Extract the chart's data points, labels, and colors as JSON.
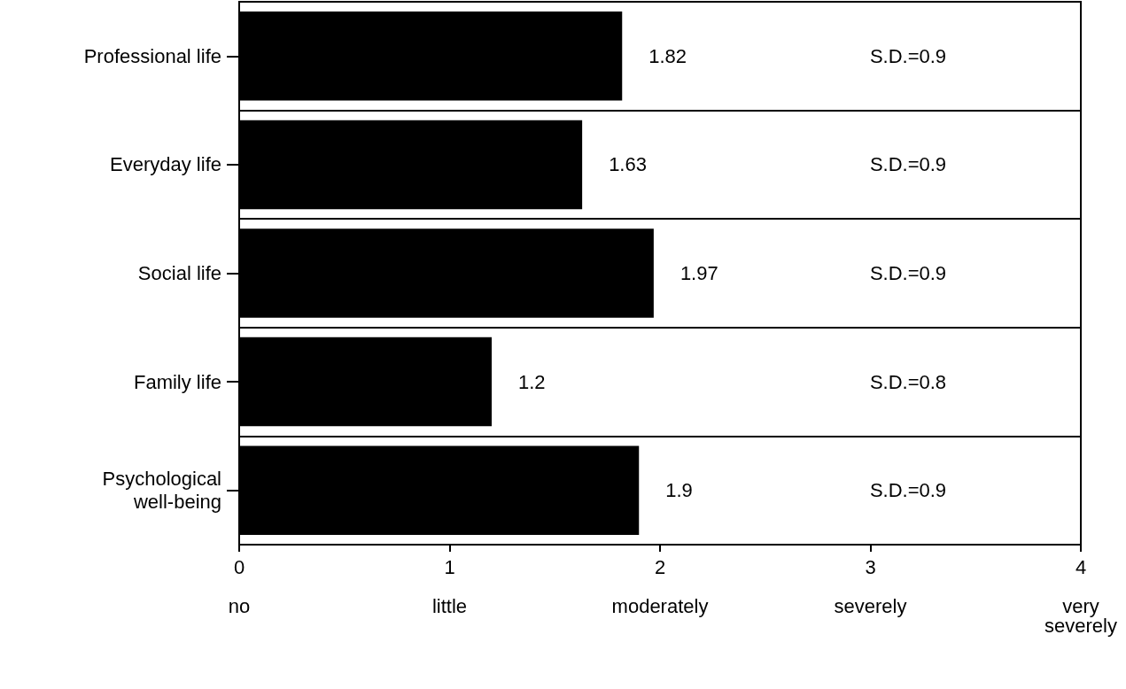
{
  "chart_data": {
    "type": "bar",
    "orientation": "horizontal",
    "categories": [
      "Professional life",
      "Everyday life",
      "Social life",
      "Family life",
      "Psychological\nwell-being"
    ],
    "values": [
      1.82,
      1.63,
      1.97,
      1.2,
      1.9
    ],
    "color": "#000000",
    "data_labels": true,
    "xlim": [
      0,
      4
    ],
    "xticks": [
      {
        "value": 0,
        "label": "0\n\nno"
      },
      {
        "value": 1,
        "label": "1\n\nlittle"
      },
      {
        "value": 2,
        "label": "2\n\nmoderately"
      },
      {
        "value": 3,
        "label": "3\n\nseverely"
      },
      {
        "value": 4,
        "label": "4\n\nvery\nseverely"
      }
    ],
    "grid": "y",
    "annotations": [
      "S.D.=0.9",
      "S.D.=0.9",
      "S.D.=0.9",
      "S.D.=0.8",
      "S.D.=0.9"
    ]
  }
}
